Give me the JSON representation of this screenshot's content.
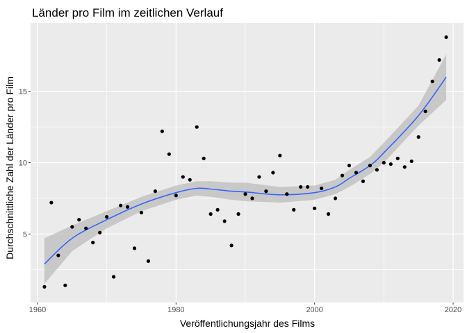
{
  "chart_data": {
    "type": "scatter",
    "title": "Länder pro Film im zeitlichen Verlauf",
    "xlabel": "Veröffentlichungsjahr des Films",
    "ylabel": "Durchschnittliche Zahl der Länder pro Film",
    "xlim": [
      1959,
      2021.5
    ],
    "ylim": [
      0.2,
      19.8
    ],
    "x_ticks": [
      1960,
      1980,
      2000,
      2020
    ],
    "y_ticks": [
      5,
      10,
      15
    ],
    "grid": true,
    "colors": {
      "panel": "#ebebeb",
      "grid_major": "#ffffff",
      "points": "#000000",
      "smooth_line": "#3366ff",
      "ribbon": "#bfbfbf"
    },
    "points": {
      "x": [
        1961,
        1962,
        1963,
        1964,
        1965,
        1966,
        1967,
        1968,
        1969,
        1970,
        1971,
        1972,
        1973,
        1974,
        1975,
        1976,
        1977,
        1978,
        1979,
        1980,
        1981,
        1982,
        1983,
        1984,
        1985,
        1986,
        1987,
        1988,
        1989,
        1990,
        1991,
        1992,
        1993,
        1994,
        1995,
        1996,
        1997,
        1998,
        1999,
        2000,
        2001,
        2002,
        2003,
        2004,
        2005,
        2006,
        2007,
        2008,
        2009,
        2010,
        2011,
        2012,
        2013,
        2014,
        2015,
        2016,
        2017,
        2018,
        2019
      ],
      "y": [
        1.3,
        7.2,
        3.5,
        1.4,
        5.5,
        6.0,
        5.4,
        4.4,
        5.1,
        6.2,
        2.0,
        7.0,
        6.9,
        4.0,
        6.5,
        3.1,
        8.0,
        12.2,
        10.6,
        7.7,
        9.0,
        8.8,
        12.5,
        10.3,
        6.4,
        6.7,
        5.9,
        4.2,
        6.4,
        7.8,
        7.5,
        9.0,
        8.0,
        9.3,
        10.5,
        7.8,
        6.7,
        8.3,
        8.3,
        6.8,
        8.2,
        6.4,
        7.5,
        9.1,
        9.8,
        9.3,
        8.7,
        9.8,
        9.5,
        10.0,
        9.9,
        10.3,
        9.7,
        10.1,
        11.8,
        13.6,
        15.7,
        17.2,
        18.8
      ]
    },
    "smooth": {
      "x": [
        1961,
        1965,
        1970,
        1975,
        1980,
        1983,
        1985,
        1988,
        1990,
        1995,
        2000,
        2003,
        2005,
        2008,
        2010,
        2015,
        2019
      ],
      "y": [
        2.9,
        4.7,
        6.0,
        7.1,
        7.9,
        8.2,
        8.15,
        8.0,
        7.95,
        7.75,
        7.9,
        8.3,
        8.9,
        9.8,
        10.7,
        13.3,
        16.0
      ],
      "lower": [
        1.5,
        3.8,
        5.4,
        6.6,
        7.4,
        7.7,
        7.6,
        7.4,
        7.3,
        7.2,
        7.4,
        7.8,
        8.3,
        9.2,
        10.0,
        12.6,
        14.4
      ],
      "upper": [
        4.7,
        5.6,
        6.6,
        7.6,
        8.4,
        8.7,
        8.7,
        8.6,
        8.6,
        8.3,
        8.4,
        8.8,
        9.5,
        10.4,
        11.4,
        14.0,
        17.6
      ]
    }
  }
}
